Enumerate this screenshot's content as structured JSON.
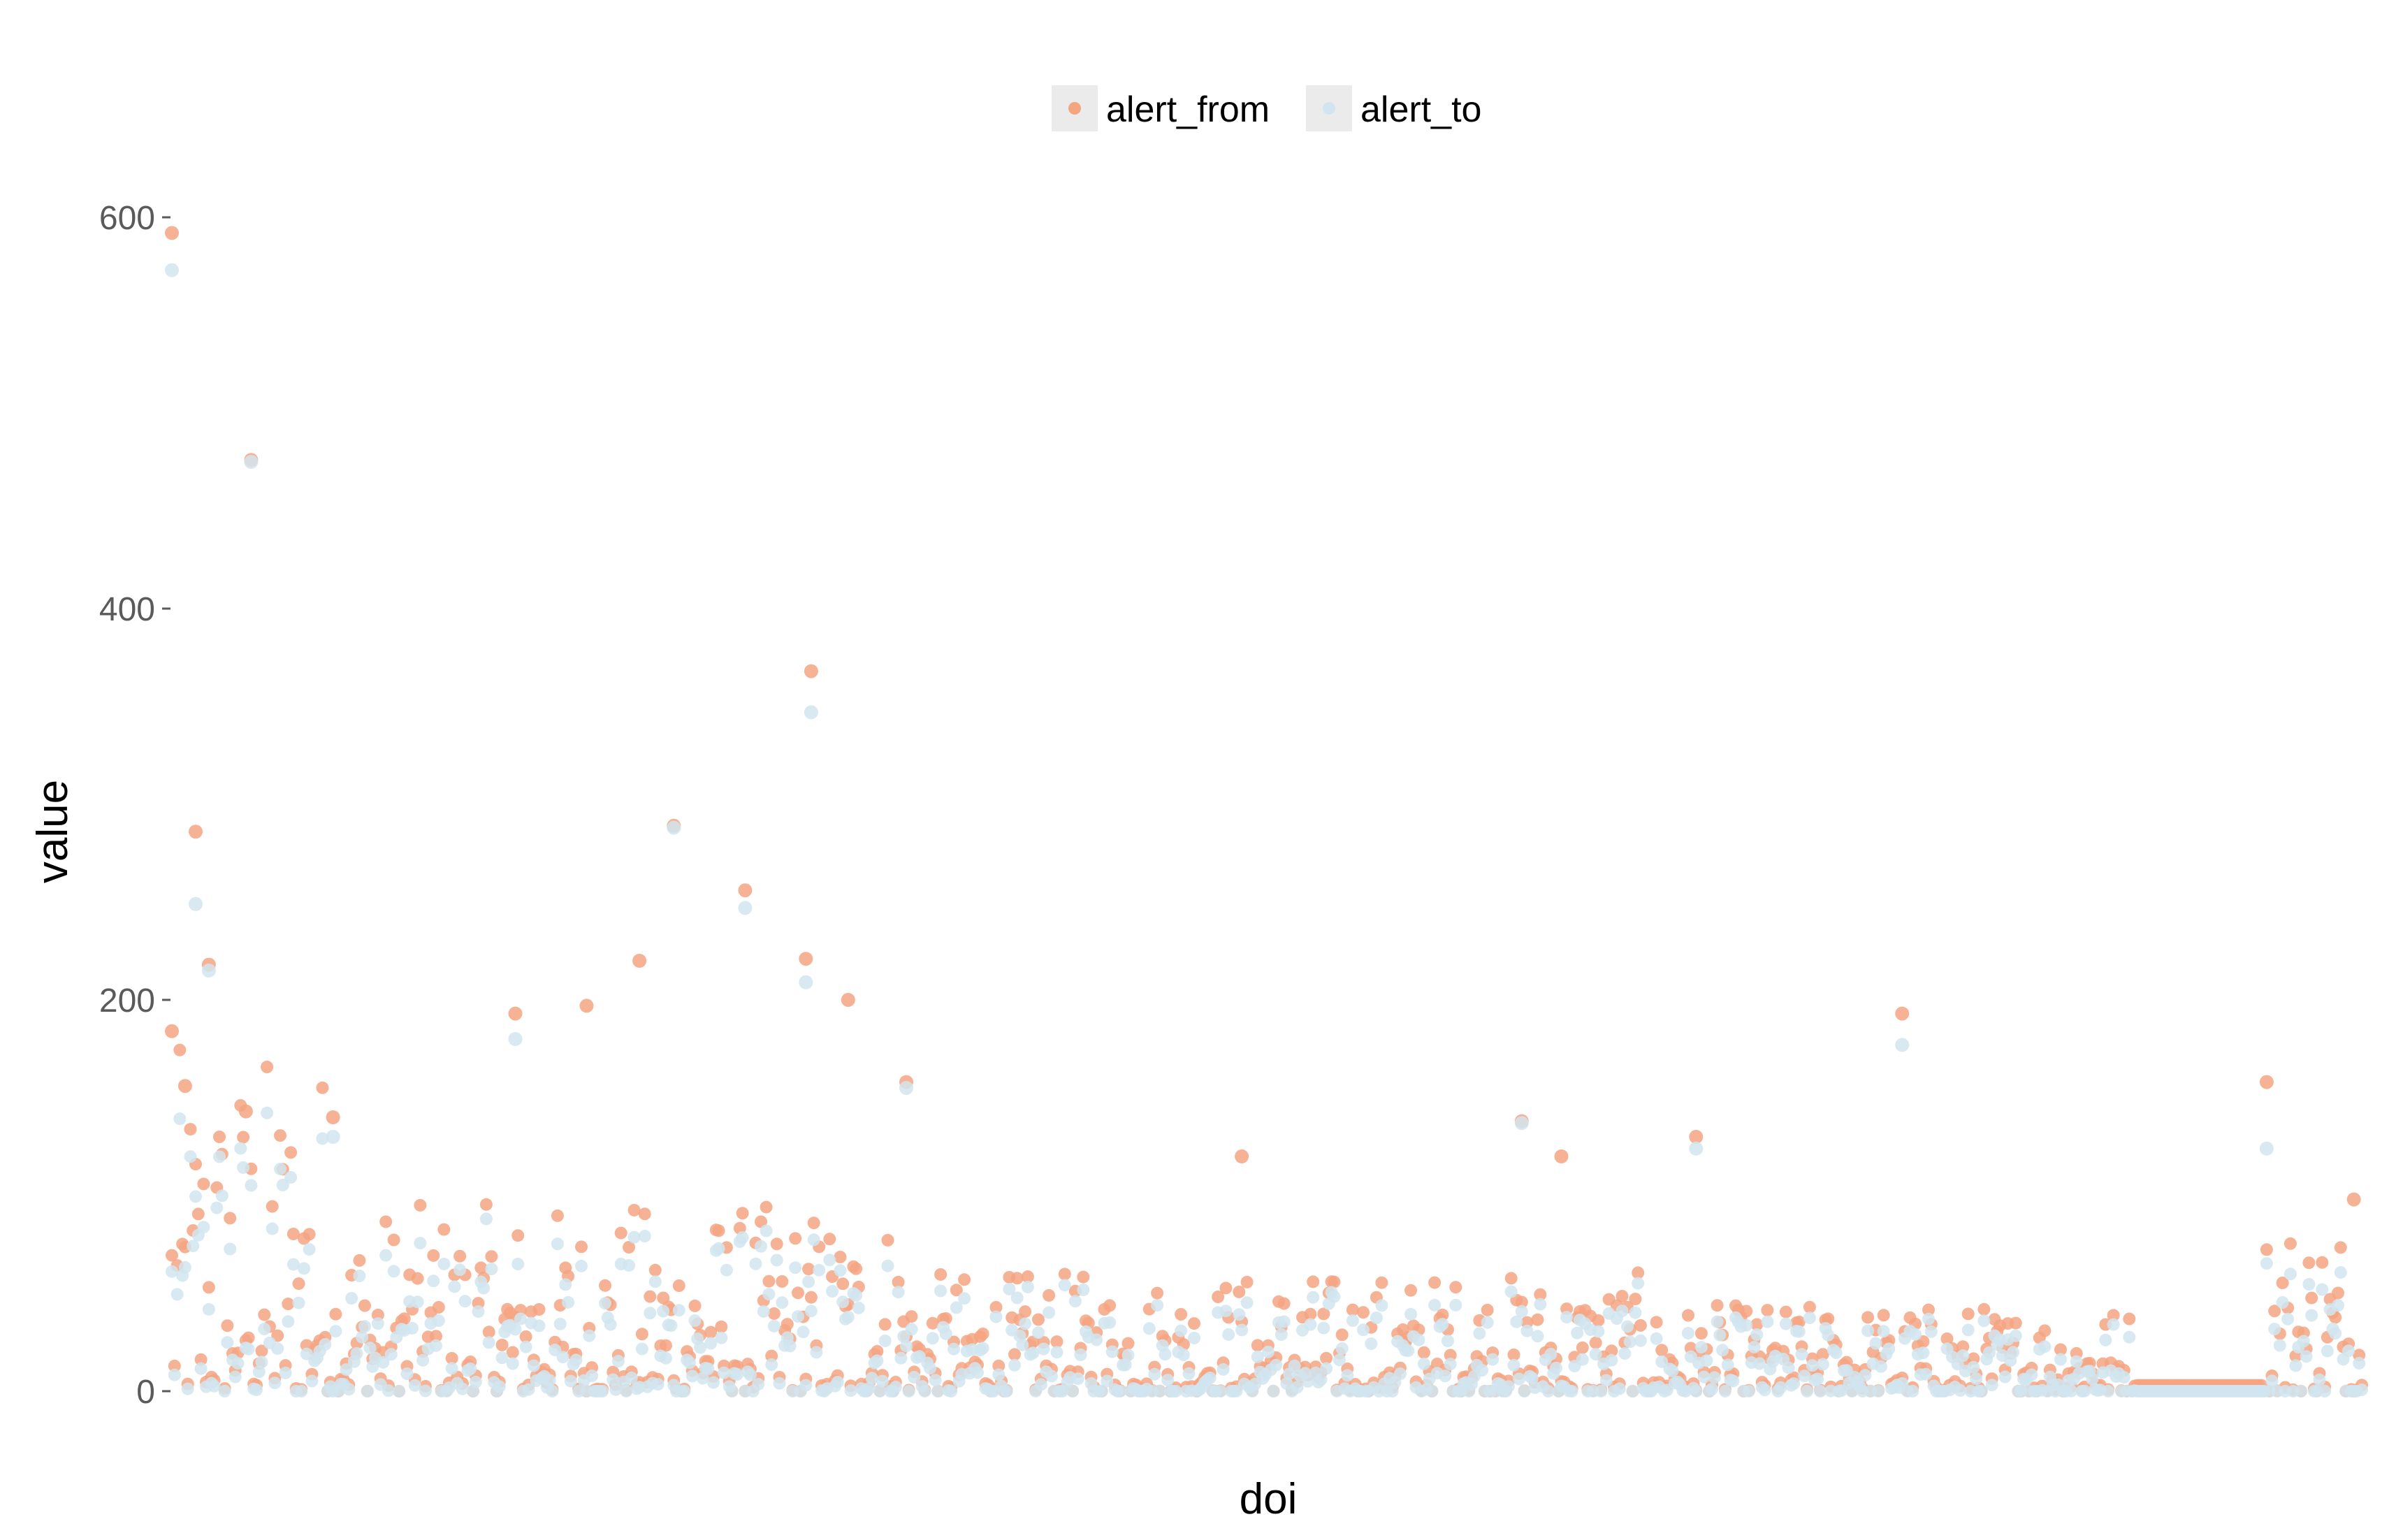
{
  "chart_data": {
    "type": "scatter",
    "xlabel": "doi",
    "ylabel": "value",
    "x_ticks_shown": false,
    "ylim": [
      -75,
      625
    ],
    "y_ticks": [
      0,
      200,
      400,
      600
    ],
    "grid": false,
    "legend_position": "top",
    "x_count": 830,
    "series": [
      {
        "name": "alert_from",
        "color": "#f4a582",
        "notable_points": [
          {
            "x": 1,
            "y": 592
          },
          {
            "x": 1,
            "y": 184
          },
          {
            "x": 6,
            "y": 156
          },
          {
            "x": 10,
            "y": 286
          },
          {
            "x": 15,
            "y": 218
          },
          {
            "x": 29,
            "y": 143
          },
          {
            "x": 31,
            "y": 476
          },
          {
            "x": 62,
            "y": 140
          },
          {
            "x": 131,
            "y": 193
          },
          {
            "x": 158,
            "y": 197
          },
          {
            "x": 178,
            "y": 220
          },
          {
            "x": 191,
            "y": 289
          },
          {
            "x": 218,
            "y": 256
          },
          {
            "x": 241,
            "y": 221
          },
          {
            "x": 243,
            "y": 368
          },
          {
            "x": 257,
            "y": 200
          },
          {
            "x": 279,
            "y": 158
          },
          {
            "x": 406,
            "y": 120
          },
          {
            "x": 512,
            "y": 138
          },
          {
            "x": 527,
            "y": 120
          },
          {
            "x": 578,
            "y": 130
          },
          {
            "x": 656,
            "y": 193
          },
          {
            "x": 794,
            "y": 158
          },
          {
            "x": 827,
            "y": 98
          }
        ],
        "typical_range": [
          0,
          60
        ],
        "flat_segment": {
          "x_from": 745,
          "x_to": 792,
          "y": 3
        }
      },
      {
        "name": "alert_to",
        "color": "#d1e5f0",
        "notable_points": [
          {
            "x": 1,
            "y": 573
          },
          {
            "x": 10,
            "y": 249
          },
          {
            "x": 15,
            "y": 215
          },
          {
            "x": 31,
            "y": 475
          },
          {
            "x": 62,
            "y": 130
          },
          {
            "x": 131,
            "y": 180
          },
          {
            "x": 191,
            "y": 288
          },
          {
            "x": 218,
            "y": 247
          },
          {
            "x": 241,
            "y": 209
          },
          {
            "x": 243,
            "y": 347
          },
          {
            "x": 279,
            "y": 155
          },
          {
            "x": 512,
            "y": 137
          },
          {
            "x": 578,
            "y": 124
          },
          {
            "x": 656,
            "y": 177
          },
          {
            "x": 794,
            "y": 124
          }
        ],
        "typical_range": [
          0,
          55
        ],
        "flat_segment": {
          "x_from": 745,
          "x_to": 792,
          "y": 0
        }
      }
    ]
  }
}
